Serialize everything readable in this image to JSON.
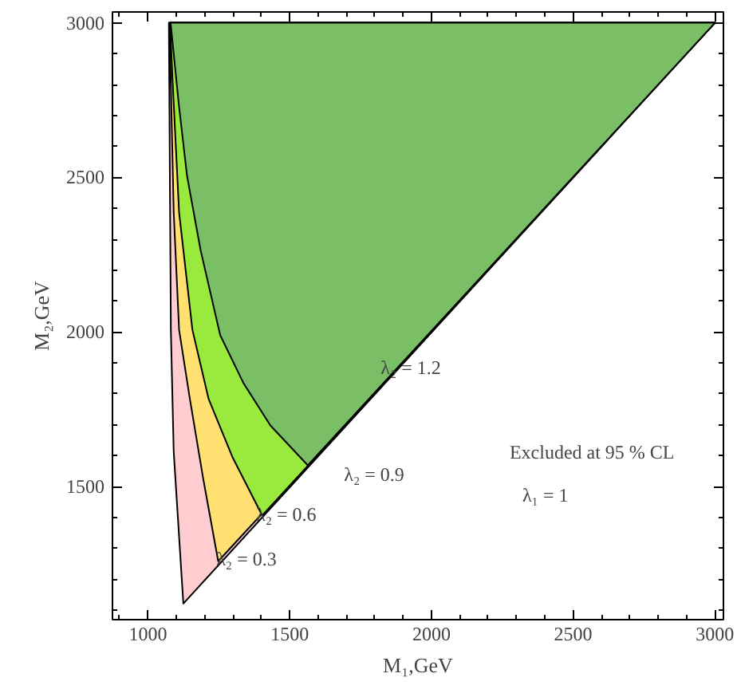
{
  "chart_data": {
    "type": "area",
    "xlabel": "M₁,GeV",
    "ylabel": "M₂,GeV",
    "xlim": [
      875,
      3030
    ],
    "ylim": [
      1070,
      3035
    ],
    "xticks": [
      1000,
      1500,
      2000,
      2500,
      3000
    ],
    "yticks": [
      1500,
      2000,
      2500,
      3000
    ],
    "grid": false,
    "series": [
      {
        "color": "#ffccd0",
        "x": [
          1074,
          1081,
          1091,
          1125,
          3000
        ],
        "values": [
          3000,
          2007,
          1613,
          1122,
          3000
        ]
      },
      {
        "color": "#ffe070",
        "x": [
          1076,
          1091,
          1110,
          1148,
          1195,
          1248,
          3000
        ],
        "values": [
          3000,
          2387,
          2007,
          1784,
          1526,
          1259,
          3000
        ]
      },
      {
        "color": "#99ea3c",
        "x": [
          1078,
          1087,
          1110,
          1157,
          1214,
          1299,
          1403,
          3000
        ],
        "values": [
          3000,
          2814,
          2387,
          2007,
          1784,
          1594,
          1407,
          3000
        ]
      },
      {
        "color": "#7abf66",
        "x": [
          1080,
          1110,
          1138,
          1186,
          1255,
          1337,
          1432,
          1564,
          3000
        ],
        "values": [
          3000,
          2728,
          2505,
          2264,
          1990,
          1835,
          1698,
          1569,
          3000
        ]
      }
    ],
    "annotations": [
      "λ₂ = 1.2",
      "λ₂ = 0.9",
      "λ₂ = 0.6",
      "λ₂ = 0.3",
      "Excluded at 95 % CL",
      "λ₁ = 1"
    ]
  }
}
